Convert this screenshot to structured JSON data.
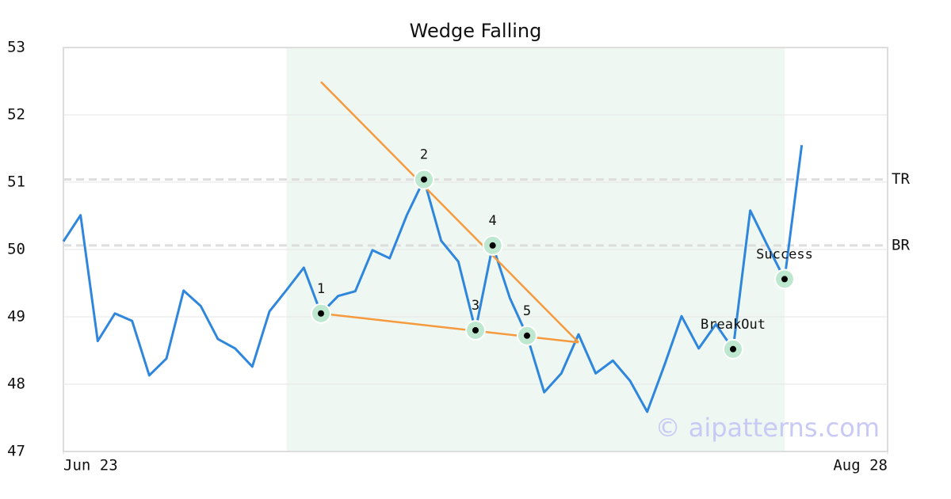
{
  "chart_data": {
    "type": "line",
    "title": "Wedge Falling",
    "watermark": "© aipatterns.com",
    "x": [
      0,
      1,
      2,
      3,
      4,
      5,
      6,
      7,
      8,
      9,
      10,
      11,
      12,
      13,
      14,
      15,
      16,
      17,
      18,
      19,
      20,
      21,
      22,
      23,
      24,
      25,
      26,
      27,
      28,
      29,
      30,
      31,
      32,
      33,
      34,
      35,
      36,
      37,
      38,
      39,
      40,
      41,
      42,
      43
    ],
    "values": [
      50.12,
      50.51,
      48.64,
      49.05,
      48.94,
      48.13,
      48.38,
      49.39,
      49.16,
      48.67,
      48.53,
      48.26,
      49.08,
      49.4,
      49.73,
      49.05,
      49.31,
      49.38,
      49.99,
      49.87,
      50.51,
      51.04,
      50.13,
      49.82,
      48.8,
      50.06,
      49.28,
      48.72,
      47.88,
      48.16,
      48.74,
      48.16,
      48.35,
      48.05,
      47.59,
      48.28,
      49.01,
      48.53,
      48.89,
      48.52,
      50.58,
      50.06,
      49.56,
      51.55
    ],
    "color": "#2f86dd",
    "xlim": [
      0,
      48
    ],
    "xticks": [
      {
        "value": 0,
        "label": "Jun 23"
      },
      {
        "value": 48,
        "label": "Aug 28"
      }
    ],
    "ylim": [
      47,
      53
    ],
    "yticks": [
      47,
      48,
      49,
      50,
      51,
      52,
      53
    ],
    "grid": true,
    "region": {
      "x": [
        13,
        42
      ],
      "color": "#eef7f2"
    },
    "levels": [
      {
        "label": "TR",
        "value": 51.04
      },
      {
        "label": "BR",
        "value": 50.06
      }
    ],
    "trend_lines": {
      "color": "#f59a3e",
      "lines": [
        {
          "x": [
            15,
            30
          ],
          "y": [
            52.49,
            48.62
          ]
        },
        {
          "x": [
            15,
            30
          ],
          "y": [
            49.05,
            48.62
          ]
        }
      ]
    },
    "points": [
      {
        "label": "1",
        "x": 15,
        "y": 49.05
      },
      {
        "label": "2",
        "x": 21,
        "y": 51.04
      },
      {
        "label": "3",
        "x": 24,
        "y": 48.8
      },
      {
        "label": "4",
        "x": 25,
        "y": 50.06
      },
      {
        "label": "5",
        "x": 27,
        "y": 48.72
      },
      {
        "label": "BreakOut",
        "x": 39,
        "y": 48.52
      },
      {
        "label": "Success",
        "x": 42,
        "y": 49.56
      }
    ]
  }
}
